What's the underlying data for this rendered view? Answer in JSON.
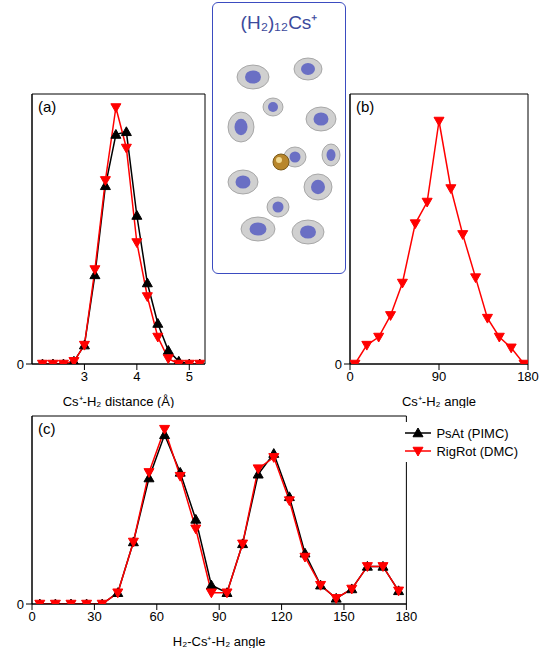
{
  "inset": {
    "title": "(H₂)₁₂Cs⁺"
  },
  "chart_data": [
    {
      "type": "line",
      "panel_label": "(a)",
      "x_label": "Cs⁺-H₂ distance (Å)",
      "xlim": [
        2,
        5.3
      ],
      "xticks": [
        3,
        4,
        5
      ],
      "ylim": [
        0,
        1
      ],
      "yticks": [
        0
      ],
      "x": [
        2.2,
        2.4,
        2.6,
        2.8,
        3.0,
        3.2,
        3.4,
        3.6,
        3.8,
        4.0,
        4.2,
        4.4,
        4.6,
        4.8,
        5.0,
        5.2
      ],
      "series": [
        {
          "color": "#000000",
          "marker": "triangle-up",
          "values": [
            0,
            0,
            0,
            0.01,
            0.07,
            0.33,
            0.66,
            0.85,
            0.86,
            0.55,
            0.3,
            0.15,
            0.05,
            0.01,
            0,
            0
          ]
        },
        {
          "color": "#ff0000",
          "marker": "triangle-down",
          "values": [
            0,
            0,
            0,
            0.01,
            0.07,
            0.35,
            0.68,
            0.95,
            0.8,
            0.45,
            0.25,
            0.1,
            0.02,
            0,
            0,
            0
          ]
        }
      ]
    },
    {
      "type": "line",
      "panel_label": "(b)",
      "x_label": "Cs⁺-H₂ angle",
      "xlim": [
        0,
        180
      ],
      "xticks": [
        0,
        90,
        180
      ],
      "ylim": [
        0,
        1
      ],
      "yticks": [
        0
      ],
      "x": [
        5,
        17,
        29,
        41,
        53,
        66,
        78,
        90,
        102,
        114,
        127,
        139,
        151,
        163,
        176
      ],
      "series": [
        {
          "color": "#ff0000",
          "marker": "triangle-down",
          "values": [
            0,
            0.07,
            0.1,
            0.18,
            0.3,
            0.52,
            0.6,
            0.9,
            0.65,
            0.48,
            0.32,
            0.17,
            0.1,
            0.06,
            0
          ]
        }
      ]
    },
    {
      "type": "line",
      "panel_label": "(c)",
      "x_label": "H₂-Cs⁺-H₂ angle",
      "xlim": [
        0,
        180
      ],
      "xticks": [
        0,
        30,
        60,
        90,
        120,
        150,
        180
      ],
      "ylim": [
        0,
        1
      ],
      "yticks": [
        0
      ],
      "legend": "upper right",
      "x": [
        3.75,
        11.25,
        18.75,
        26.25,
        33.75,
        41.25,
        48.75,
        56.25,
        63.75,
        71.25,
        78.75,
        86.25,
        93.75,
        101.25,
        108.75,
        116.25,
        123.75,
        131.25,
        138.75,
        146.25,
        153.75,
        161.25,
        168.75,
        176.25
      ],
      "series": [
        {
          "name": "PsAt (PIMC)",
          "color": "#000000",
          "marker": "triangle-up",
          "values": [
            0,
            0,
            0,
            0,
            0,
            0.06,
            0.33,
            0.67,
            0.9,
            0.7,
            0.45,
            0.1,
            0.06,
            0.32,
            0.69,
            0.8,
            0.57,
            0.27,
            0.1,
            0.03,
            0.08,
            0.2,
            0.2,
            0.07
          ]
        },
        {
          "name": "RigRot (DMC)",
          "color": "#ff0000",
          "marker": "triangle-down",
          "values": [
            0,
            0,
            0,
            0,
            0,
            0.06,
            0.33,
            0.7,
            0.93,
            0.68,
            0.4,
            0.06,
            0.06,
            0.32,
            0.72,
            0.78,
            0.55,
            0.25,
            0.1,
            0.03,
            0.08,
            0.2,
            0.2,
            0.07
          ]
        }
      ]
    }
  ]
}
